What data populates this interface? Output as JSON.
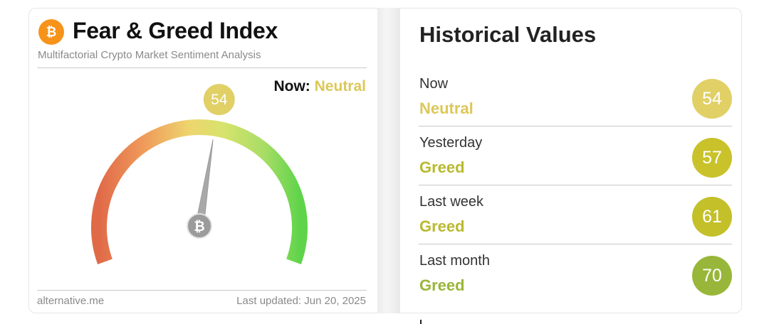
{
  "header": {
    "logo_icon": "bitcoin-icon",
    "title": "Fear & Greed Index",
    "subtitle": "Multifactorial Crypto Market Sentiment Analysis"
  },
  "now": {
    "label": "Now:",
    "classification": "Neutral",
    "value": "54",
    "color": "#dcc859"
  },
  "gauge": {
    "value": 54,
    "min": 0,
    "max": 100,
    "center_icon": "bitcoin-icon"
  },
  "footer": {
    "source": "alternative.me",
    "last_updated": "Last updated: Jun 20, 2025"
  },
  "historical": {
    "title": "Historical Values",
    "rows": [
      {
        "label": "Now",
        "classification": "Neutral",
        "value": "54",
        "text_color": "#dcc859",
        "badge_color": "#e0d066"
      },
      {
        "label": "Yesterday",
        "classification": "Greed",
        "value": "57",
        "text_color": "#b9b92f",
        "badge_color": "#c9c22a"
      },
      {
        "label": "Last week",
        "classification": "Greed",
        "value": "61",
        "text_color": "#b9b92f",
        "badge_color": "#c3c02a"
      },
      {
        "label": "Last month",
        "classification": "Greed",
        "value": "70",
        "text_color": "#9ab53a",
        "badge_color": "#98b73a"
      }
    ]
  }
}
